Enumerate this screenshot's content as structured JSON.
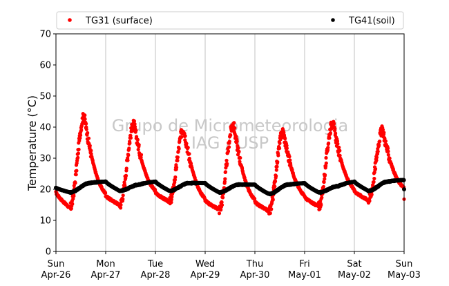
{
  "chart_data": {
    "type": "scatter",
    "xlabel": "",
    "ylabel": "Temperature (°C)",
    "ylim": [
      0,
      70
    ],
    "yticks": [
      0,
      10,
      20,
      30,
      40,
      50,
      60,
      70
    ],
    "xlim": [
      0,
      7
    ],
    "xticks": [
      {
        "day": "Sun",
        "date": "Apr-26"
      },
      {
        "day": "Mon",
        "date": "Apr-27"
      },
      {
        "day": "Tue",
        "date": "Apr-28"
      },
      {
        "day": "Wed",
        "date": "Apr-29"
      },
      {
        "day": "Thu",
        "date": "Apr-30"
      },
      {
        "day": "Fri",
        "date": "May-01"
      },
      {
        "day": "Sat",
        "date": "May-02"
      },
      {
        "day": "Sun",
        "date": "May-03"
      }
    ],
    "grid": "vertical",
    "legend_position": "top",
    "watermark": [
      "Grupo de Micrometeorologia",
      "IAG / USP"
    ],
    "series": [
      {
        "name": "TG31 (surface)",
        "color": "#ff0000",
        "daily_min": [
          14.0,
          15.0,
          16.0,
          13.5,
          13.0,
          14.5,
          16.5,
          17.0
        ],
        "daily_peak": [
          43.5,
          41.0,
          39.5,
          41.0,
          38.5,
          41.5,
          39.0
        ],
        "peak_offset_day": 0.57
      },
      {
        "name": "TG41(soil)",
        "color": "#000000",
        "daily_min": [
          19.0,
          19.5,
          19.5,
          19.0,
          18.5,
          19.0,
          19.5,
          20.0
        ],
        "daily_peak": [
          22.0,
          21.5,
          22.0,
          21.5,
          21.5,
          21.0,
          22.5
        ],
        "start_value": 20.5,
        "peak_offset_day": 0.68
      }
    ]
  }
}
